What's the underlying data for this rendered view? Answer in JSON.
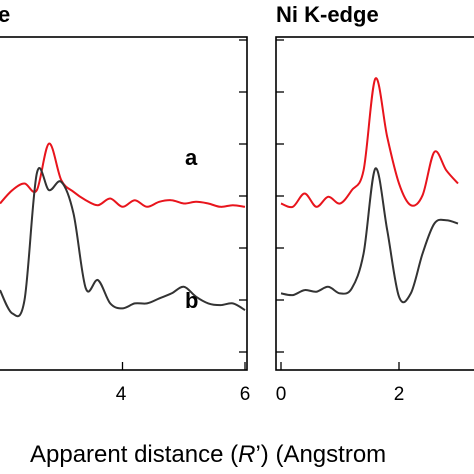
{
  "chart_data": [
    {
      "type": "line",
      "title": "e",
      "xlim": [
        2,
        6
      ],
      "ylim": [
        -10,
        10
      ],
      "x_ticks": [
        4,
        6
      ],
      "x_tick_labels": [
        "4",
        "6"
      ],
      "curve_labels": [
        "a",
        "b"
      ],
      "series": [
        {
          "label": "a",
          "color": "#e8141c",
          "x": [
            2.0,
            2.2,
            2.4,
            2.6,
            2.8,
            3.0,
            3.2,
            3.4,
            3.6,
            3.8,
            4.0,
            4.2,
            4.4,
            4.6,
            4.8,
            5.0,
            5.2,
            5.4,
            5.6,
            5.8,
            6.0
          ],
          "y": [
            0.0,
            0.8,
            1.2,
            0.8,
            3.6,
            1.4,
            0.7,
            0.2,
            -0.1,
            0.3,
            -0.2,
            0.2,
            -0.2,
            0.1,
            0.2,
            0.0,
            0.1,
            0.0,
            -0.2,
            -0.1,
            -0.2
          ]
        },
        {
          "label": "b",
          "color": "#333333",
          "x": [
            2.0,
            2.2,
            2.4,
            2.6,
            2.8,
            3.0,
            3.2,
            3.4,
            3.6,
            3.8,
            4.0,
            4.2,
            4.4,
            4.6,
            4.8,
            5.0,
            5.2,
            5.4,
            5.6,
            5.8,
            6.0
          ],
          "y": [
            -5.2,
            -6.6,
            -5.8,
            1.8,
            0.8,
            1.3,
            -0.6,
            -5.1,
            -4.6,
            -6.0,
            -6.3,
            -6.0,
            -6.0,
            -5.7,
            -5.4,
            -5.0,
            -5.6,
            -6.0,
            -6.1,
            -6.0,
            -6.4
          ]
        }
      ]
    },
    {
      "type": "line",
      "title": "Ni K-edge",
      "xlim": [
        0,
        3
      ],
      "ylim": [
        -10,
        10
      ],
      "x_ticks": [
        0,
        2
      ],
      "x_tick_labels": [
        "0",
        "2"
      ],
      "series": [
        {
          "label": "a",
          "color": "#e8141c",
          "x": [
            0.0,
            0.2,
            0.4,
            0.6,
            0.8,
            1.0,
            1.2,
            1.4,
            1.6,
            1.8,
            2.0,
            2.2,
            2.4,
            2.6,
            2.8,
            3.0
          ],
          "y": [
            0.0,
            -0.2,
            0.6,
            -0.2,
            0.4,
            0.0,
            0.8,
            2.0,
            7.5,
            4.0,
            1.2,
            -0.1,
            0.5,
            3.1,
            2.0,
            1.2
          ]
        },
        {
          "label": "b",
          "color": "#333333",
          "x": [
            0.0,
            0.2,
            0.4,
            0.6,
            0.8,
            1.0,
            1.2,
            1.4,
            1.6,
            1.8,
            2.0,
            2.2,
            2.4,
            2.6,
            2.8,
            3.0
          ],
          "y": [
            -5.4,
            -5.5,
            -5.2,
            -5.3,
            -5.0,
            -5.4,
            -5.1,
            -3.0,
            2.1,
            -1.6,
            -5.6,
            -5.4,
            -3.0,
            -1.2,
            -1.0,
            -1.2
          ]
        }
      ]
    }
  ],
  "xlabel_prefix": "Apparent distance (",
  "xlabel_var": "R",
  "xlabel_mid": "’) (Angstrom",
  "colors": {
    "series_a": "#e8141c",
    "series_b": "#333333",
    "axes": "#000000"
  }
}
